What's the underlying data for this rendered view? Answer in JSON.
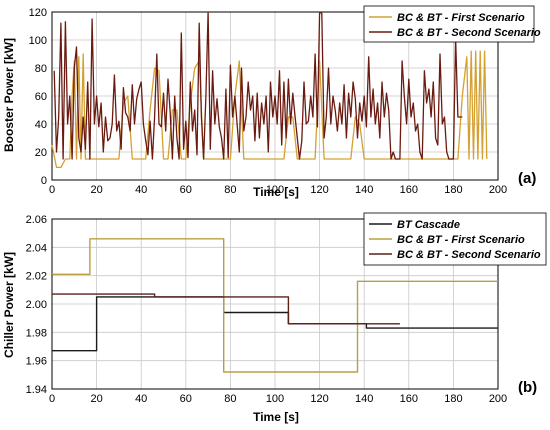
{
  "chart_data": [
    {
      "type": "line",
      "panel_label": "(a)",
      "xlabel": "Time [s]",
      "ylabel": "Booster Power [kW]",
      "xlim": [
        0,
        200
      ],
      "ylim": [
        0,
        120
      ],
      "xticks": [
        0,
        20,
        40,
        60,
        80,
        100,
        120,
        140,
        160,
        180,
        200
      ],
      "yticks": [
        0,
        20,
        40,
        60,
        80,
        100,
        120
      ],
      "grid": true,
      "legend_position": "top-right",
      "series": [
        {
          "name": "BC & BT - First Scenario",
          "color": "#d4a030",
          "x": [
            0,
            2,
            4,
            6,
            8,
            9,
            10,
            11,
            12,
            13,
            14,
            15,
            16,
            18,
            20,
            22,
            24,
            26,
            28,
            30,
            32,
            34,
            36,
            38,
            40,
            42,
            44,
            46,
            48,
            50,
            52,
            54,
            56,
            58,
            60,
            62,
            64,
            66,
            68,
            70,
            72,
            74,
            76,
            78,
            80,
            82,
            84,
            86,
            88,
            90,
            92,
            94,
            96,
            98,
            100,
            102,
            104,
            106,
            108,
            110,
            112,
            114,
            116,
            118,
            120,
            122,
            124,
            126,
            128,
            130,
            132,
            134,
            136,
            138,
            140,
            142,
            144,
            146,
            148,
            150,
            152,
            154,
            156,
            158,
            160,
            162,
            164,
            166,
            168,
            170,
            172,
            174,
            176,
            178,
            180,
            182,
            184,
            186,
            187,
            188,
            189,
            190,
            191,
            192,
            193,
            194,
            195
          ],
          "values": [
            25,
            9,
            9,
            15,
            15,
            60,
            85,
            15,
            88,
            15,
            90,
            15,
            15,
            15,
            15,
            15,
            15,
            15,
            15,
            15,
            55,
            60,
            15,
            15,
            15,
            15,
            50,
            80,
            78,
            15,
            15,
            50,
            50,
            15,
            15,
            55,
            80,
            85,
            15,
            15,
            15,
            15,
            15,
            15,
            15,
            60,
            85,
            15,
            15,
            15,
            15,
            15,
            15,
            15,
            15,
            15,
            15,
            45,
            45,
            15,
            15,
            15,
            15,
            15,
            85,
            15,
            15,
            15,
            15,
            15,
            15,
            15,
            45,
            40,
            15,
            15,
            15,
            15,
            15,
            15,
            15,
            15,
            15,
            15,
            15,
            15,
            15,
            15,
            15,
            15,
            15,
            15,
            15,
            15,
            15,
            15,
            60,
            88,
            15,
            92,
            15,
            92,
            15,
            92,
            15,
            92,
            15
          ]
        },
        {
          "name": "BC & BT - Second Scenario",
          "color": "#6a1a10",
          "x": [
            1,
            2,
            3,
            4,
            5,
            6,
            7,
            8,
            9,
            10,
            11,
            12,
            13,
            14,
            15,
            16,
            17,
            18,
            19,
            20,
            21,
            22,
            23,
            24,
            25,
            26,
            27,
            28,
            29,
            30,
            31,
            32,
            33,
            34,
            35,
            36,
            37,
            38,
            39,
            40,
            41,
            42,
            43,
            44,
            45,
            46,
            47,
            48,
            49,
            50,
            51,
            52,
            53,
            54,
            55,
            56,
            57,
            58,
            59,
            60,
            61,
            62,
            63,
            64,
            65,
            66,
            67,
            68,
            69,
            70,
            71,
            72,
            73,
            74,
            75,
            76,
            77,
            78,
            79,
            80,
            81,
            82,
            83,
            84,
            85,
            86,
            87,
            88,
            89,
            90,
            91,
            92,
            93,
            94,
            95,
            96,
            97,
            98,
            99,
            100,
            101,
            102,
            103,
            104,
            105,
            106,
            107,
            108,
            109,
            110,
            111,
            112,
            113,
            114,
            115,
            116,
            117,
            118,
            119,
            120,
            121,
            122,
            123,
            124,
            125,
            126,
            127,
            128,
            129,
            130,
            131,
            132,
            133,
            134,
            135,
            136,
            137,
            138,
            139,
            140,
            141,
            142,
            143,
            144,
            145,
            146,
            147,
            148,
            149,
            150,
            151,
            152,
            153,
            154,
            155,
            156,
            157,
            158,
            159,
            160,
            161,
            162,
            163,
            164,
            165,
            166,
            167,
            168,
            169,
            170,
            171,
            172,
            173,
            174,
            175,
            176,
            177,
            178,
            179,
            180,
            181,
            182,
            183,
            184
          ],
          "values": [
            78,
            20,
            45,
            112,
            15,
            113,
            40,
            60,
            15,
            80,
            95,
            30,
            20,
            45,
            22,
            70,
            15,
            115,
            40,
            60,
            38,
            55,
            20,
            45,
            28,
            30,
            40,
            75,
            35,
            42,
            22,
            66,
            48,
            45,
            35,
            68,
            40,
            58,
            65,
            70,
            40,
            28,
            18,
            42,
            15,
            45,
            90,
            40,
            38,
            62,
            35,
            72,
            48,
            15,
            60,
            30,
            15,
            105,
            22,
            42,
            16,
            70,
            35,
            50,
            18,
            112,
            45,
            15,
            60,
            120,
            22,
            78,
            40,
            58,
            38,
            30,
            15,
            65,
            16,
            82,
            45,
            60,
            40,
            20,
            80,
            35,
            45,
            70,
            50,
            60,
            28,
            62,
            30,
            55,
            40,
            60,
            20,
            70,
            45,
            60,
            40,
            78,
            25,
            70,
            30,
            72,
            40,
            62,
            45,
            30,
            15,
            28,
            70,
            40,
            42,
            60,
            45,
            90,
            38,
            120,
            119,
            30,
            45,
            80,
            40,
            60,
            50,
            35,
            55,
            40,
            68,
            30,
            62,
            45,
            70,
            58,
            30,
            55,
            42,
            60,
            38,
            88,
            45,
            65,
            40,
            55,
            30,
            70,
            45,
            62,
            50,
            15,
            20,
            15,
            15,
            15,
            85,
            60,
            40,
            72,
            45,
            55,
            35,
            40,
            20,
            15,
            78,
            55,
            65,
            45,
            70,
            30,
            25,
            90,
            40,
            45,
            20,
            15,
            15,
            15,
            102,
            45,
            45,
            45
          ]
        }
      ]
    },
    {
      "type": "line",
      "panel_label": "(b)",
      "xlabel": "Time [s]",
      "ylabel": "Chiller Power [kW]",
      "xlim": [
        0,
        200
      ],
      "ylim": [
        1.94,
        2.06
      ],
      "xticks": [
        0,
        20,
        40,
        60,
        80,
        100,
        120,
        140,
        160,
        180,
        200
      ],
      "yticks": [
        1.94,
        1.96,
        1.98,
        2.0,
        2.02,
        2.04,
        2.06
      ],
      "yticks_labels": [
        "1.94",
        "1.96",
        "1.98",
        "2.00",
        "2.02",
        "2.04",
        "2.06"
      ],
      "grid": true,
      "legend_position": "top-right",
      "series": [
        {
          "name": "BT Cascade",
          "color": "#1a1a1a",
          "x": [
            0,
            20,
            20,
            77,
            77,
            106,
            106,
            141,
            141,
            200
          ],
          "values": [
            1.967,
            1.967,
            2.005,
            2.005,
            1.994,
            1.994,
            1.986,
            1.986,
            1.983,
            1.983
          ]
        },
        {
          "name": "BC & BT - First Scenario",
          "color": "#b8a040",
          "x": [
            0,
            17,
            17,
            77,
            77,
            137,
            137,
            200
          ],
          "values": [
            2.021,
            2.021,
            2.046,
            2.046,
            1.952,
            1.952,
            2.016,
            2.016
          ]
        },
        {
          "name": "BC & BT - Second Scenario",
          "color": "#5a2018",
          "x": [
            0,
            46,
            46,
            106,
            106,
            139,
            139,
            156
          ],
          "values": [
            2.007,
            2.007,
            2.005,
            2.005,
            1.986,
            1.986,
            1.986,
            1.986
          ]
        }
      ]
    }
  ]
}
